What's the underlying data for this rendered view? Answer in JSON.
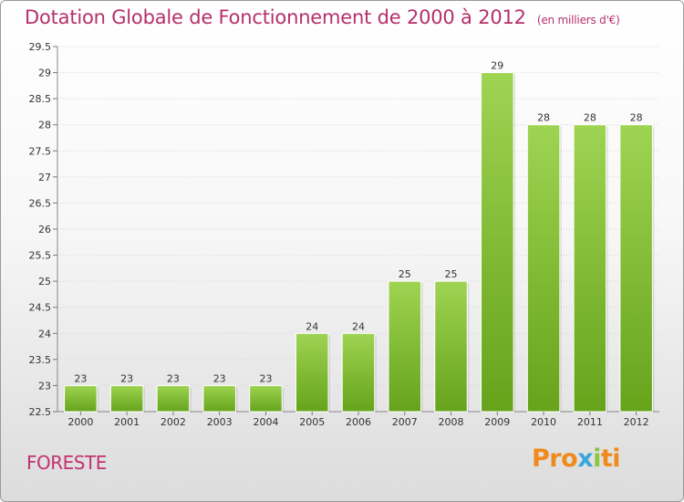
{
  "header": {
    "title": "Dotation Globale de Fonctionnement de 2000 à 2012",
    "unit": "(en milliers d'€)"
  },
  "footer": {
    "commune": "FORESTE",
    "logo_parts": [
      "Pro",
      "x",
      "i",
      "ti"
    ]
  },
  "colors": {
    "title": "#b5306a",
    "bar_top": "#9ed452",
    "bar_bottom": "#66a31b",
    "logo": [
      "#f08a1d",
      "#3aa6dc",
      "#8cc63f",
      "#f08a1d"
    ]
  },
  "chart_data": {
    "type": "bar",
    "title": "Dotation Globale de Fonctionnement de 2000 à 2012",
    "subtitle": "(en milliers d'€)",
    "xlabel": "",
    "ylabel": "",
    "categories": [
      "2000",
      "2001",
      "2002",
      "2003",
      "2004",
      "2005",
      "2006",
      "2007",
      "2008",
      "2009",
      "2010",
      "2011",
      "2012"
    ],
    "values": [
      23,
      23,
      23,
      23,
      23,
      24,
      24,
      25,
      25,
      29,
      28,
      28,
      28
    ],
    "data_labels": [
      "23",
      "23",
      "23",
      "23",
      "23",
      "24",
      "24",
      "25",
      "25",
      "29",
      "28",
      "28",
      "28"
    ],
    "ylim": [
      22.5,
      29.5
    ],
    "yticks": [
      "22.5",
      "23",
      "23.5",
      "24",
      "24.5",
      "25",
      "25.5",
      "26",
      "26.5",
      "27",
      "27.5",
      "28",
      "28.5",
      "29",
      "29.5"
    ],
    "grid": true,
    "legend": "none"
  }
}
